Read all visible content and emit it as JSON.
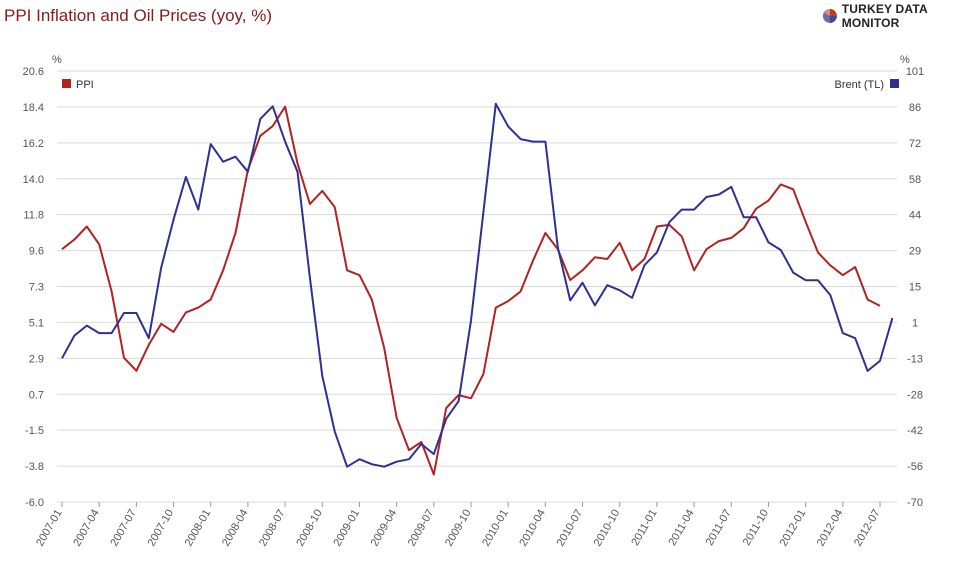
{
  "title": "PPI Inflation and Oil Prices (yoy, %)",
  "brand": {
    "name": "TURKEY DATA MONITOR",
    "icon": "pie-logo-icon"
  },
  "colors": {
    "ppi": "#b22222",
    "brent": "#2e3192",
    "grid": "#d9d9d9",
    "axis_text": "#555555"
  },
  "chart_data": {
    "type": "line",
    "title": "PPI Inflation and Oil Prices (yoy, %)",
    "left_axis": {
      "unit": "%",
      "ticks": [
        "20.6",
        "18.4",
        "16.2",
        "14.0",
        "11.8",
        "9.6",
        "7.3",
        "5.1",
        "2.9",
        "0.7",
        "-1.5",
        "-3.8",
        "-6.0"
      ],
      "range": [
        -6.0,
        20.6
      ]
    },
    "right_axis": {
      "unit": "%",
      "ticks": [
        "101",
        "86",
        "72",
        "58",
        "44",
        "29",
        "15",
        "1",
        "-13",
        "-28",
        "-42",
        "-56",
        "-70"
      ],
      "range": [
        -70,
        101
      ]
    },
    "x_ticks": [
      "2007-01",
      "2007-04",
      "2007-07",
      "2007-10",
      "2008-01",
      "2008-04",
      "2008-07",
      "2008-10",
      "2009-01",
      "2009-04",
      "2009-07",
      "2009-10",
      "2010-01",
      "2010-04",
      "2010-07",
      "2010-10",
      "2011-01",
      "2011-04",
      "2011-07",
      "2011-10",
      "2012-01",
      "2012-04",
      "2012-07"
    ],
    "start_month": "2007-01",
    "grid": true,
    "legend": "top-left (PPI) and top-right (Brent)",
    "series": [
      {
        "name": "PPI",
        "axis": "left",
        "values": [
          9.6,
          10.2,
          11.0,
          9.9,
          7.0,
          2.9,
          2.1,
          3.7,
          5.0,
          4.5,
          5.7,
          6.0,
          6.5,
          8.3,
          10.6,
          14.5,
          16.6,
          17.2,
          18.4,
          14.9,
          12.4,
          13.2,
          12.2,
          8.3,
          8.0,
          6.5,
          3.5,
          -0.8,
          -2.8,
          -2.3,
          -4.3,
          -0.2,
          0.6,
          0.4,
          1.9,
          6.0,
          6.4,
          7.0,
          8.9,
          10.6,
          9.6,
          7.7,
          8.3,
          9.1,
          9.0,
          10.0,
          8.3,
          9.0,
          11.0,
          11.1,
          10.4,
          8.3,
          9.6,
          10.1,
          10.3,
          10.9,
          12.1,
          12.6,
          13.6,
          13.3,
          11.3,
          9.4,
          8.6,
          8.0,
          8.5,
          6.5,
          6.1
        ],
        "last_month": "2012-07"
      },
      {
        "name": "Brent (TL)",
        "axis": "right",
        "values": [
          -13,
          -4,
          0,
          -3,
          -3,
          5,
          5,
          -5,
          23,
          42,
          59,
          46,
          72,
          65,
          67,
          61,
          82,
          87,
          73,
          61,
          19,
          -20,
          -42,
          -56,
          -53,
          -55,
          -56,
          -54,
          -53,
          -47,
          -51,
          -37,
          -30,
          2,
          45,
          88,
          79,
          74,
          73,
          73,
          31,
          10,
          17,
          8,
          16,
          14,
          11,
          24,
          29,
          41,
          46,
          46,
          51,
          52,
          55,
          43,
          43,
          33,
          30,
          21,
          18,
          18,
          12,
          -3,
          -5,
          -18,
          -14,
          3
        ],
        "last_month": "2012-08"
      }
    ]
  }
}
